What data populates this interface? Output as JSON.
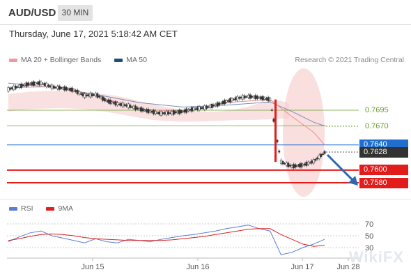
{
  "header": {
    "pair": "AUD/USD",
    "timeframe": "30 MIN",
    "datetime": "Thursday, June 17, 2021 5:18:42 AM CET"
  },
  "legend": {
    "ma_bb": {
      "label": "MA 20 + Bollinger Bands",
      "color": "#ef9a9a"
    },
    "ma50": {
      "label": "MA 50",
      "color": "#1f4e79"
    },
    "credit": "Research © 2021 Trading Central"
  },
  "rsi_legend": {
    "rsi": {
      "label": "RSI",
      "color": "#5b7fd4"
    },
    "ma9": {
      "label": "9MA",
      "color": "#e02020"
    }
  },
  "levels": {
    "r2": {
      "value": "0.7695",
      "color": "#6b9c2d"
    },
    "r1": {
      "value": "0.7670",
      "color": "#6b9c2d"
    },
    "pivot": {
      "value": "0.7640",
      "color": "#1f6fd1"
    },
    "last": {
      "value": "0.7628"
    },
    "s1": {
      "value": "0.7600",
      "color": "#e21b1b"
    },
    "s2": {
      "value": "0.7580",
      "color": "#e21b1b"
    }
  },
  "watermark": "WikiFX",
  "chart_data": [
    {
      "type": "line",
      "title": "AUD/USD 30 MIN",
      "x_ticks": [
        "Jun 15",
        "Jun 16",
        "Jun 17",
        "Jun 28"
      ],
      "ylim": [
        0.756,
        0.778
      ],
      "series": [
        {
          "name": "AUD/USD",
          "x": [
            0,
            1,
            2,
            3,
            4,
            5,
            6,
            7,
            8,
            9,
            10,
            11,
            12,
            13,
            14,
            15,
            16,
            17,
            18,
            19,
            20,
            21,
            22,
            23,
            24,
            25,
            26,
            27,
            28,
            29
          ],
          "values": [
            0.7728,
            0.7733,
            0.7737,
            0.7738,
            0.7732,
            0.773,
            0.7727,
            0.7718,
            0.772,
            0.771,
            0.7705,
            0.7702,
            0.7697,
            0.7693,
            0.769,
            0.7691,
            0.7693,
            0.7697,
            0.7699,
            0.7703,
            0.7709,
            0.7714,
            0.7717,
            0.7715,
            0.7712,
            0.7613,
            0.7606,
            0.7608,
            0.7614,
            0.7628
          ]
        },
        {
          "name": "MA 50",
          "x": [
            0,
            4,
            8,
            12,
            16,
            20,
            24,
            26,
            28,
            29
          ],
          "values": [
            0.7738,
            0.7731,
            0.772,
            0.7707,
            0.77,
            0.7703,
            0.7708,
            0.7693,
            0.7676,
            0.767
          ]
        },
        {
          "name": "MA 20",
          "x": [
            0,
            4,
            8,
            12,
            16,
            20,
            24,
            26,
            28,
            29
          ],
          "values": [
            0.7731,
            0.7732,
            0.7718,
            0.7697,
            0.7693,
            0.7707,
            0.7712,
            0.7685,
            0.766,
            0.764
          ]
        }
      ],
      "horizontal_lines": [
        0.7695,
        0.767,
        0.764,
        0.76,
        0.758
      ],
      "last_price": 0.7628,
      "projection": {
        "from": [
          29,
          0.7628
        ],
        "to": [
          31.5,
          0.7582
        ]
      }
    },
    {
      "type": "line",
      "title": "RSI",
      "y_ticks": [
        70,
        50,
        30
      ],
      "ylim": [
        10,
        90
      ],
      "series": [
        {
          "name": "RSI",
          "x": [
            0,
            1,
            2,
            3,
            4,
            5,
            6,
            7,
            8,
            9,
            10,
            11,
            12,
            13,
            14,
            15,
            16,
            17,
            18,
            19,
            20,
            21,
            22,
            23,
            24,
            25,
            26,
            27,
            28,
            29
          ],
          "values": [
            40,
            48,
            55,
            58,
            50,
            46,
            42,
            38,
            45,
            40,
            38,
            44,
            42,
            40,
            44,
            47,
            50,
            52,
            55,
            58,
            62,
            65,
            68,
            62,
            58,
            18,
            22,
            30,
            36,
            44
          ]
        },
        {
          "name": "9MA",
          "x": [
            0,
            1,
            2,
            3,
            4,
            5,
            6,
            7,
            8,
            9,
            10,
            11,
            12,
            13,
            14,
            15,
            16,
            17,
            18,
            19,
            20,
            21,
            22,
            23,
            24,
            25,
            26,
            27,
            28,
            29
          ],
          "values": [
            42,
            45,
            49,
            52,
            53,
            52,
            50,
            47,
            45,
            44,
            43,
            42,
            42,
            42,
            42,
            43,
            45,
            47,
            49,
            52,
            55,
            58,
            61,
            62,
            62,
            52,
            44,
            36,
            32,
            34
          ]
        }
      ]
    }
  ]
}
